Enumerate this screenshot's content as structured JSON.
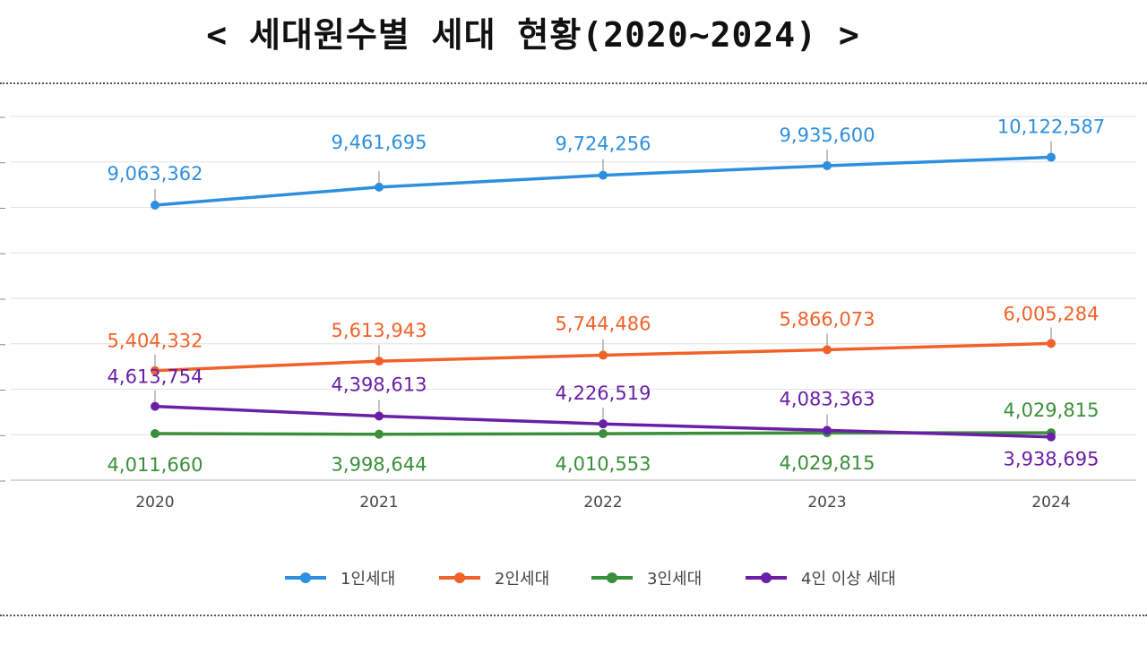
{
  "chart_data": {
    "type": "line",
    "title": "< 세대원수별 세대 현황(2020~2024) >",
    "xlabel": "",
    "ylabel": "",
    "categories": [
      "2020",
      "2021",
      "2022",
      "2023",
      "2024"
    ],
    "series": [
      {
        "name": "1인세대",
        "color": "#2e8fde",
        "values": [
          9063362,
          9461695,
          9724256,
          9935600,
          10122587
        ]
      },
      {
        "name": "2인세대",
        "color": "#f0622a",
        "values": [
          5404332,
          5613943,
          5744486,
          5866073,
          6005284
        ]
      },
      {
        "name": "3인세대",
        "color": "#3a8f3a",
        "values": [
          4011660,
          3998644,
          4010553,
          4029815,
          4029815
        ]
      },
      {
        "name": "4인 이상 세대",
        "color": "#6a1fa6",
        "values": [
          4613754,
          4398613,
          4226519,
          4083363,
          3938695
        ]
      }
    ],
    "data_labels": [
      [
        "9,063,362",
        "9,461,695",
        "9,724,256",
        "9,935,600",
        "10,122,587"
      ],
      [
        "5,404,332",
        "5,613,943",
        "5,744,486",
        "5,866,073",
        "6,005,284"
      ],
      [
        "4,011,660",
        "3,998,644",
        "4,010,553",
        "4,029,815",
        "4,029,815"
      ],
      [
        "4,613,754",
        "4,398,613",
        "4,226,519",
        "4,083,363",
        "3,938,695"
      ]
    ],
    "ylim": [
      3000000,
      11000000
    ],
    "grid": true,
    "legend_position": "bottom"
  }
}
